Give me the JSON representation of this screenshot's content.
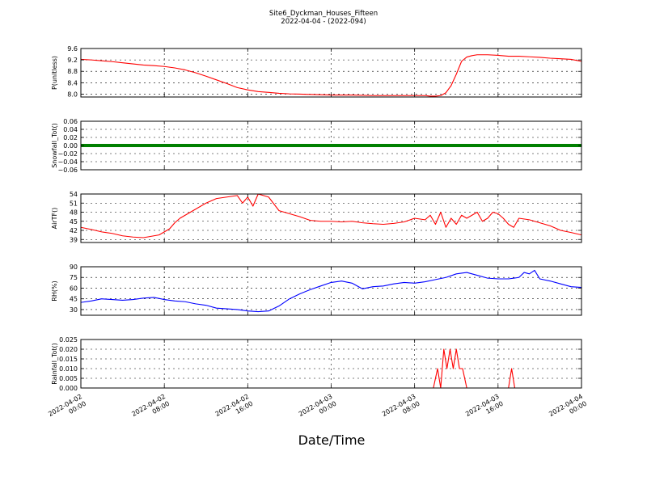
{
  "figure": {
    "title": "Site6_Dyckman_Houses_Fifteen",
    "subtitle": "2022-04-04 - (2022-094)",
    "xlabel": "Date/Time",
    "x_ticks": [
      {
        "t": 0,
        "line1": "2022-04-02",
        "line2": "00:00"
      },
      {
        "t": 8,
        "line1": "2022-04-02",
        "line2": "08:00"
      },
      {
        "t": 16,
        "line1": "2022-04-02",
        "line2": "16:00"
      },
      {
        "t": 24,
        "line1": "2022-04-03",
        "line2": "00:00"
      },
      {
        "t": 32,
        "line1": "2022-04-03",
        "line2": "08:00"
      },
      {
        "t": 40,
        "line1": "2022-04-03",
        "line2": "16:00"
      },
      {
        "t": 48,
        "line1": "2022-04-04",
        "line2": "00:00"
      }
    ]
  },
  "chart_data": [
    {
      "type": "line",
      "ylabel": "P(unitless)",
      "color": "#ff0000",
      "xlim": [
        0,
        48
      ],
      "ylim": [
        7.9,
        9.6
      ],
      "yticks": [
        8.0,
        8.4,
        8.8,
        9.2,
        9.6
      ],
      "ytick_labels": [
        "8.0",
        "8.4",
        "8.8",
        "9.2",
        "9.6"
      ],
      "grid": true,
      "x": [
        0,
        1,
        2,
        3,
        4,
        5,
        6,
        7,
        8,
        9,
        10,
        11,
        12,
        13,
        14,
        15,
        16,
        17,
        18,
        19,
        20,
        21,
        22,
        23,
        24,
        26,
        28,
        30,
        32,
        33,
        33.5,
        34,
        34.5,
        35,
        35.5,
        36,
        36.5,
        37,
        37.5,
        38,
        39,
        40,
        41,
        42,
        43,
        44,
        45,
        46,
        47,
        48
      ],
      "y": [
        9.22,
        9.2,
        9.17,
        9.14,
        9.1,
        9.06,
        9.02,
        9.0,
        8.97,
        8.92,
        8.85,
        8.75,
        8.63,
        8.5,
        8.37,
        8.23,
        8.15,
        8.09,
        8.06,
        8.03,
        8.01,
        8.0,
        7.99,
        7.98,
        7.97,
        7.97,
        7.95,
        7.95,
        7.95,
        7.95,
        7.93,
        7.93,
        7.95,
        8.05,
        8.3,
        8.7,
        9.15,
        9.3,
        9.35,
        9.38,
        9.38,
        9.36,
        9.33,
        9.33,
        9.31,
        9.29,
        9.26,
        9.24,
        9.22,
        9.15
      ]
    },
    {
      "type": "line",
      "ylabel": "Snowfall_Tot()",
      "color": "#008000",
      "xlim": [
        0,
        48
      ],
      "ylim": [
        -0.06,
        0.06
      ],
      "yticks": [
        -0.06,
        -0.04,
        -0.02,
        0.0,
        0.02,
        0.04,
        0.06
      ],
      "ytick_labels": [
        "−0.06",
        "−0.04",
        "−0.02",
        "0.00",
        "0.02",
        "0.04",
        "0.06"
      ],
      "grid": true,
      "x": [
        0,
        48
      ],
      "y": [
        0,
        0
      ]
    },
    {
      "type": "line",
      "ylabel": "AirTF()",
      "color": "#ff0000",
      "xlim": [
        0,
        48
      ],
      "ylim": [
        38,
        54
      ],
      "yticks": [
        39,
        42,
        45,
        48,
        51,
        54
      ],
      "ytick_labels": [
        "39",
        "42",
        "45",
        "48",
        "51",
        "54"
      ],
      "grid": true,
      "x": [
        0,
        1,
        2,
        3,
        4,
        5,
        6,
        7,
        7.5,
        8,
        8.5,
        9,
        9.5,
        10,
        11,
        12,
        13,
        14,
        15,
        15.5,
        16,
        16.5,
        17,
        17.5,
        18,
        19,
        20,
        21,
        22,
        23,
        24,
        25,
        26,
        27,
        28,
        29,
        30,
        31,
        32,
        33,
        33.5,
        34,
        34.5,
        35,
        35.5,
        36,
        36.5,
        37,
        37.5,
        38,
        38.5,
        39,
        39.5,
        40,
        40.5,
        41,
        41.5,
        42,
        43,
        44,
        45,
        46,
        47,
        48
      ],
      "y": [
        43,
        42.3,
        41.5,
        41,
        40.2,
        39.8,
        39.6,
        40.2,
        40.5,
        41.5,
        42.5,
        44.5,
        46,
        47,
        49,
        51,
        52.5,
        53,
        53.5,
        51,
        53,
        50,
        54,
        53.5,
        53,
        48.5,
        47.5,
        46.5,
        45.3,
        45,
        45,
        44.8,
        45,
        44.5,
        44.2,
        44,
        44.3,
        44.8,
        46,
        45.5,
        47,
        44,
        48,
        43,
        46,
        44,
        47,
        46,
        47,
        48,
        45,
        46,
        48,
        47.5,
        46,
        44,
        43,
        46,
        45.5,
        44.5,
        43.5,
        42,
        41.3,
        40.5
      ]
    },
    {
      "type": "line",
      "ylabel": "RH(%)",
      "color": "#0000ff",
      "xlim": [
        0,
        48
      ],
      "ylim": [
        22,
        90
      ],
      "yticks": [
        30,
        45,
        60,
        75,
        90
      ],
      "ytick_labels": [
        "30",
        "45",
        "60",
        "75",
        "90"
      ],
      "grid": true,
      "x": [
        0,
        1,
        2,
        3,
        4,
        5,
        6,
        7,
        8,
        9,
        10,
        11,
        12,
        13,
        14,
        15,
        16,
        17,
        18,
        19,
        20,
        21,
        22,
        23,
        24,
        25,
        26,
        27,
        28,
        29,
        30,
        31,
        32,
        33,
        34,
        35,
        36,
        37,
        38,
        39,
        40,
        41,
        42,
        42.5,
        43,
        43.5,
        44,
        45,
        46,
        47,
        48
      ],
      "y": [
        40,
        42,
        45,
        44,
        43,
        44,
        46,
        47,
        44,
        42,
        41,
        38,
        36,
        32,
        31,
        30,
        28,
        27,
        28,
        35,
        45,
        52,
        58,
        63,
        68,
        70,
        67,
        59,
        62,
        63,
        66,
        68,
        67,
        69,
        72,
        75,
        80,
        82,
        78,
        74,
        73,
        73,
        75,
        82,
        80,
        85,
        73,
        70,
        66,
        62,
        61
      ]
    },
    {
      "type": "line",
      "ylabel": "Rainfall_Tot()",
      "color": "#ff0000",
      "xlim": [
        0,
        48
      ],
      "ylim": [
        0,
        0.025
      ],
      "yticks": [
        0.0,
        0.005,
        0.01,
        0.015,
        0.02,
        0.025
      ],
      "ytick_labels": [
        "0.000",
        "0.005",
        "0.010",
        "0.015",
        "0.020",
        "0.025"
      ],
      "grid": true,
      "x": [
        0,
        33.8,
        34.2,
        34.5,
        34.8,
        35.1,
        35.4,
        35.7,
        36,
        36.3,
        36.6,
        37,
        37.3,
        37.6,
        41,
        41.3,
        41.6,
        48
      ],
      "y": [
        0,
        0,
        0.01,
        0,
        0.02,
        0.01,
        0.02,
        0.01,
        0.02,
        0.01,
        0.01,
        0,
        0,
        0,
        0,
        0.01,
        0,
        0
      ]
    }
  ]
}
